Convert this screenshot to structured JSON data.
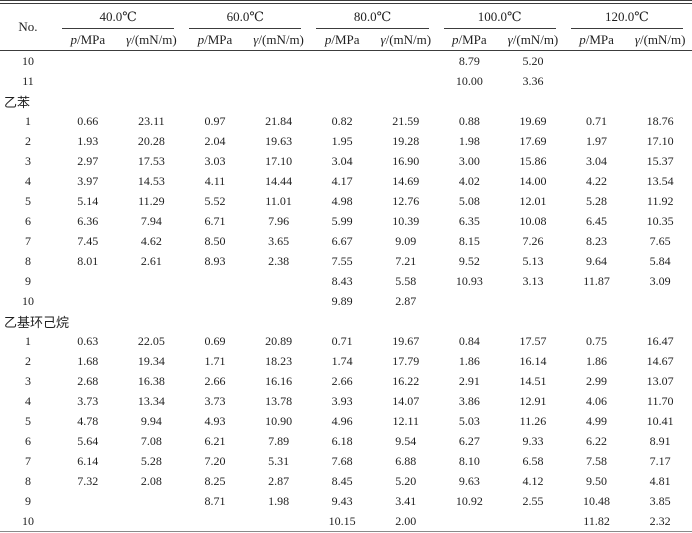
{
  "table": {
    "no_label": "No.",
    "temp_headers": [
      "40.0℃",
      "60.0℃",
      "80.0℃",
      "100.0℃",
      "120.0℃"
    ],
    "sub_headers": {
      "p_sym": "p",
      "p_unit": "/MPa",
      "gamma_sym": "γ",
      "gamma_unit": "/(mN/m)"
    },
    "rows": [
      {
        "no": "10",
        "cells": [
          "",
          "",
          "",
          "",
          "",
          "",
          "8.79",
          "5.20",
          "",
          ""
        ]
      },
      {
        "no": "11",
        "cells": [
          "",
          "",
          "",
          "",
          "",
          "",
          "10.00",
          "3.36",
          "",
          ""
        ]
      },
      {
        "section": "乙苯"
      },
      {
        "no": "1",
        "cells": [
          "0.66",
          "23.11",
          "0.97",
          "21.84",
          "0.82",
          "21.59",
          "0.88",
          "19.69",
          "0.71",
          "18.76"
        ]
      },
      {
        "no": "2",
        "cells": [
          "1.93",
          "20.28",
          "2.04",
          "19.63",
          "1.95",
          "19.28",
          "1.98",
          "17.69",
          "1.97",
          "17.10"
        ]
      },
      {
        "no": "3",
        "cells": [
          "2.97",
          "17.53",
          "3.03",
          "17.10",
          "3.04",
          "16.90",
          "3.00",
          "15.86",
          "3.04",
          "15.37"
        ]
      },
      {
        "no": "4",
        "cells": [
          "3.97",
          "14.53",
          "4.11",
          "14.44",
          "4.17",
          "14.69",
          "4.02",
          "14.00",
          "4.22",
          "13.54"
        ]
      },
      {
        "no": "5",
        "cells": [
          "5.14",
          "11.29",
          "5.52",
          "11.01",
          "4.98",
          "12.76",
          "5.08",
          "12.01",
          "5.28",
          "11.92"
        ]
      },
      {
        "no": "6",
        "cells": [
          "6.36",
          "7.94",
          "6.71",
          "7.96",
          "5.99",
          "10.39",
          "6.35",
          "10.08",
          "6.45",
          "10.35"
        ]
      },
      {
        "no": "7",
        "cells": [
          "7.45",
          "4.62",
          "8.50",
          "3.65",
          "6.67",
          "9.09",
          "8.15",
          "7.26",
          "8.23",
          "7.65"
        ]
      },
      {
        "no": "8",
        "cells": [
          "8.01",
          "2.61",
          "8.93",
          "2.38",
          "7.55",
          "7.21",
          "9.52",
          "5.13",
          "9.64",
          "5.84"
        ]
      },
      {
        "no": "9",
        "cells": [
          "",
          "",
          "",
          "",
          "8.43",
          "5.58",
          "10.93",
          "3.13",
          "11.87",
          "3.09"
        ]
      },
      {
        "no": "10",
        "cells": [
          "",
          "",
          "",
          "",
          "9.89",
          "2.87",
          "",
          "",
          "",
          ""
        ]
      },
      {
        "section": "乙基环己烷"
      },
      {
        "no": "1",
        "cells": [
          "0.63",
          "22.05",
          "0.69",
          "20.89",
          "0.71",
          "19.67",
          "0.84",
          "17.57",
          "0.75",
          "16.47"
        ]
      },
      {
        "no": "2",
        "cells": [
          "1.68",
          "19.34",
          "1.71",
          "18.23",
          "1.74",
          "17.79",
          "1.86",
          "16.14",
          "1.86",
          "14.67"
        ]
      },
      {
        "no": "3",
        "cells": [
          "2.68",
          "16.38",
          "2.66",
          "16.16",
          "2.66",
          "16.22",
          "2.91",
          "14.51",
          "2.99",
          "13.07"
        ]
      },
      {
        "no": "4",
        "cells": [
          "3.73",
          "13.34",
          "3.73",
          "13.78",
          "3.93",
          "14.07",
          "3.86",
          "12.91",
          "4.06",
          "11.70"
        ]
      },
      {
        "no": "5",
        "cells": [
          "4.78",
          "9.94",
          "4.93",
          "10.90",
          "4.96",
          "12.11",
          "5.03",
          "11.26",
          "4.99",
          "10.41"
        ]
      },
      {
        "no": "6",
        "cells": [
          "5.64",
          "7.08",
          "6.21",
          "7.89",
          "6.18",
          "9.54",
          "6.27",
          "9.33",
          "6.22",
          "8.91"
        ]
      },
      {
        "no": "7",
        "cells": [
          "6.14",
          "5.28",
          "7.20",
          "5.31",
          "7.68",
          "6.88",
          "8.10",
          "6.58",
          "7.58",
          "7.17"
        ]
      },
      {
        "no": "8",
        "cells": [
          "7.32",
          "2.08",
          "8.25",
          "2.87",
          "8.45",
          "5.20",
          "9.63",
          "4.12",
          "9.50",
          "4.81"
        ]
      },
      {
        "no": "9",
        "cells": [
          "",
          "",
          "8.71",
          "1.98",
          "9.43",
          "3.41",
          "10.92",
          "2.55",
          "10.48",
          "3.85"
        ]
      },
      {
        "no": "10",
        "cells": [
          "",
          "",
          "",
          "",
          "10.15",
          "2.00",
          "",
          "",
          "11.82",
          "2.32"
        ]
      }
    ]
  }
}
